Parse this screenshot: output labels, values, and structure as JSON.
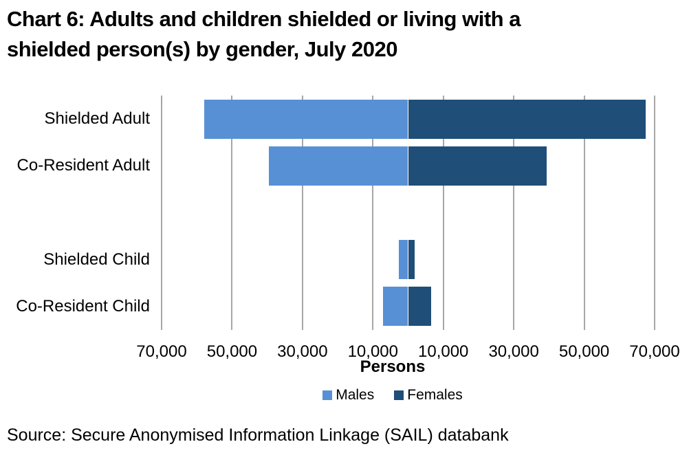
{
  "header": {
    "title_line1": "Chart 6: Adults and children shielded or living with a",
    "title_line2": "shielded person(s) by gender, July 2020"
  },
  "source": {
    "text": "Source: Secure Anonymised Information Linkage (SAIL) databank"
  },
  "legend": {
    "items": [
      {
        "label": "Males",
        "color": "#5890D5"
      },
      {
        "label": "Females",
        "color": "#1F4E79"
      }
    ]
  },
  "chart_data": {
    "type": "bar",
    "variant": "horizontal-diverging-stacked",
    "title": "Chart 6: Adults and children shielded or living with a shielded person(s) by gender, July 2020",
    "categories": [
      "Shielded Adult",
      "Co-Resident Adult",
      "",
      "Shielded Child",
      "Co-Resident Child"
    ],
    "series": [
      {
        "name": "Males",
        "color": "#5890D5",
        "side": "left",
        "values": [
          57800,
          39500,
          null,
          2700,
          7100
        ]
      },
      {
        "name": "Females",
        "color": "#1F4E79",
        "side": "right",
        "values": [
          67500,
          39400,
          null,
          1900,
          6600
        ]
      }
    ],
    "xlabel": "Persons",
    "axis": {
      "min": -70000,
      "max": 70000,
      "gridline_values": [
        -70000,
        -50000,
        -30000,
        -10000,
        10000,
        30000,
        50000,
        70000
      ],
      "tick_labels": [
        "70,000",
        "50,000",
        "30,000",
        "10,000",
        "10,000",
        "30,000",
        "50,000",
        "70,000"
      ],
      "gridline_color": "#A6A6A6"
    },
    "grid": true,
    "legend_position": "bottom"
  }
}
